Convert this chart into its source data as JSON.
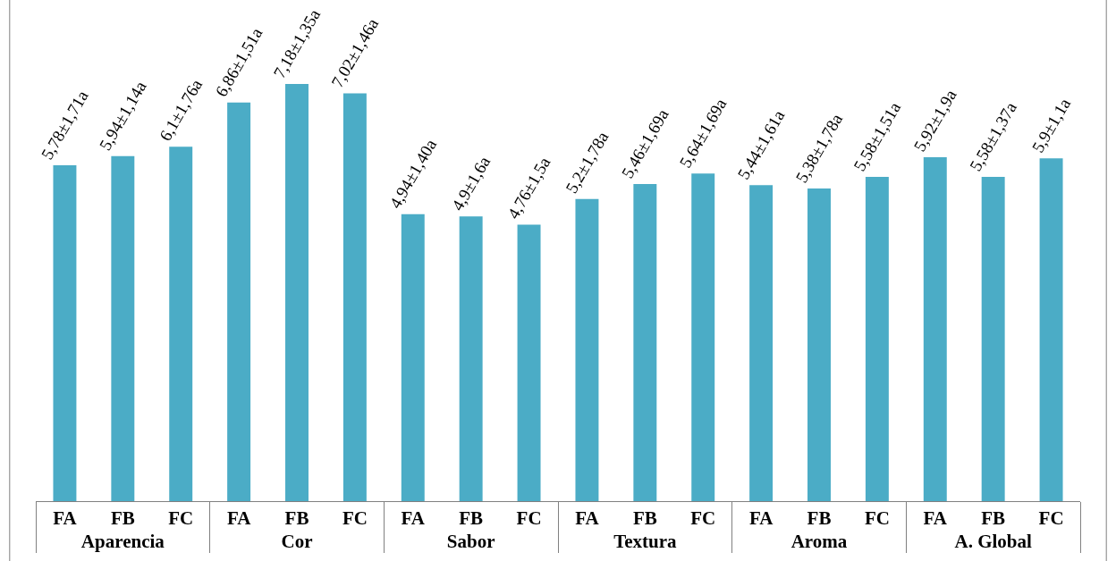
{
  "chart_data": {
    "type": "bar",
    "categories": [
      "FA",
      "FB",
      "FC",
      "FA",
      "FB",
      "FC",
      "FA",
      "FB",
      "FC",
      "FA",
      "FB",
      "FC",
      "FA",
      "FB",
      "FC",
      "FA",
      "FB",
      "FC"
    ],
    "annotations": [
      "Aparencia",
      "Cor",
      "Sabor",
      "Textura",
      "Aroma",
      "A. Global"
    ],
    "values": [
      5.78,
      5.94,
      6.1,
      6.86,
      7.18,
      7.02,
      4.94,
      4.9,
      4.76,
      5.2,
      5.46,
      5.64,
      5.44,
      5.38,
      5.58,
      5.92,
      5.58,
      5.9
    ],
    "value_labels": [
      "5,78±1,71a",
      "5,94±1,14a",
      "6,1±1,76a",
      "6,86±1,51a",
      "7,18±1,35a",
      "7,02±1,46a",
      "4,94±1,40a",
      "4,9±1,6a",
      "4,76±1,5a",
      "5,2±1,78a",
      "5,46±1,69a",
      "5,64±1,69a",
      "5,44±1,61a",
      "5,38±1,78a",
      "5,58±1,51a",
      "5,92±1,9a",
      "5,58±1,37a",
      "5,9±1,1a"
    ],
    "color": "#4bacc6",
    "tick_labels": "x"
  }
}
